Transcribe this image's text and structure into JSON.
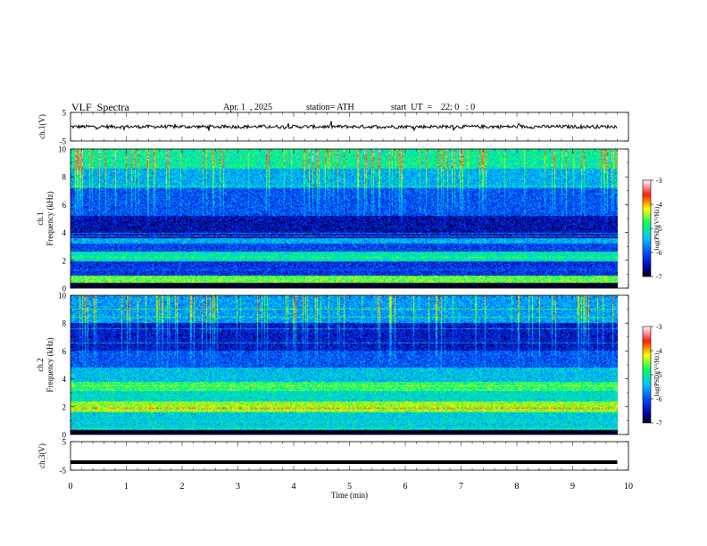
{
  "header": {
    "title": "VLF  Spectra",
    "date": "Apr. 1  , 2025",
    "station": "station= ATH",
    "start": "start  UT  =    22: 0   : 0"
  },
  "chart_data": {
    "type": "heatmap",
    "xlabel": "Time  (min)",
    "x_ticks": [
      "0",
      "1",
      "2",
      "3",
      "4",
      "5",
      "6",
      "7",
      "8",
      "9",
      "10"
    ],
    "xlim": [
      0,
      10
    ],
    "data_end_min": 9.8,
    "panels": [
      {
        "name": "ch.1(V)",
        "kind": "waveform",
        "ylim": [
          -5,
          5
        ],
        "y_ticks": [
          "5",
          "-5"
        ],
        "waveform_level": 0,
        "color": "#000000"
      },
      {
        "name": "ch.1",
        "kind": "spectrogram",
        "ylabel": "Frequency  (kHz)",
        "ylim": [
          0,
          10
        ],
        "y_ticks": [
          "0",
          "2",
          "4",
          "6",
          "8",
          "10"
        ],
        "colorbar": {
          "label": "log(PSD)(V²/Hz)",
          "range": [
            -7,
            -3
          ],
          "ticks": [
            "-3",
            "-4",
            "-5",
            "-6",
            "-7"
          ]
        },
        "bands_khz": [
          {
            "from": 0,
            "to": 0.4,
            "log_psd": -7
          },
          {
            "from": 0.4,
            "to": 0.9,
            "log_psd": -4.6
          },
          {
            "from": 0.9,
            "to": 1.9,
            "log_psd": -6.2
          },
          {
            "from": 1.9,
            "to": 2.6,
            "log_psd": -5.1
          },
          {
            "from": 2.6,
            "to": 3.2,
            "log_psd": -6.1
          },
          {
            "from": 3.2,
            "to": 3.6,
            "log_psd": -5.5
          },
          {
            "from": 3.6,
            "to": 5.2,
            "log_psd": -6.5
          },
          {
            "from": 5.2,
            "to": 7.2,
            "log_psd": -6.0
          },
          {
            "from": 7.2,
            "to": 8.6,
            "log_psd": -5.5
          },
          {
            "from": 8.6,
            "to": 10,
            "log_psd": -5.0
          }
        ]
      },
      {
        "name": "ch.2",
        "kind": "spectrogram",
        "ylabel": "Frequency  (kHz)",
        "ylim": [
          0,
          10
        ],
        "y_ticks": [
          "0",
          "2",
          "4",
          "6",
          "8",
          "10"
        ],
        "colorbar": {
          "label": "log(PSD)(V²/Hz)",
          "range": [
            -7,
            -3
          ],
          "ticks": [
            "-3",
            "-4",
            "-5",
            "-6",
            "-7"
          ]
        },
        "bands_khz": [
          {
            "from": 0,
            "to": 0.3,
            "log_psd": -7
          },
          {
            "from": 0.3,
            "to": 1.6,
            "log_psd": -5.3
          },
          {
            "from": 1.6,
            "to": 2.4,
            "log_psd": -4.4
          },
          {
            "from": 2.4,
            "to": 3.2,
            "log_psd": -5.2
          },
          {
            "from": 3.2,
            "to": 3.8,
            "log_psd": -4.8
          },
          {
            "from": 3.8,
            "to": 4.8,
            "log_psd": -5.4
          },
          {
            "from": 4.8,
            "to": 6.0,
            "log_psd": -6.0
          },
          {
            "from": 6.0,
            "to": 8.0,
            "log_psd": -6.4
          },
          {
            "from": 8.0,
            "to": 10,
            "log_psd": -5.6
          }
        ]
      },
      {
        "name": "ch.3(V)",
        "kind": "waveform",
        "ylim": [
          -5,
          5
        ],
        "y_ticks": [
          "5",
          "-5"
        ],
        "waveform_level": -2.2,
        "color": "#000000"
      }
    ]
  }
}
